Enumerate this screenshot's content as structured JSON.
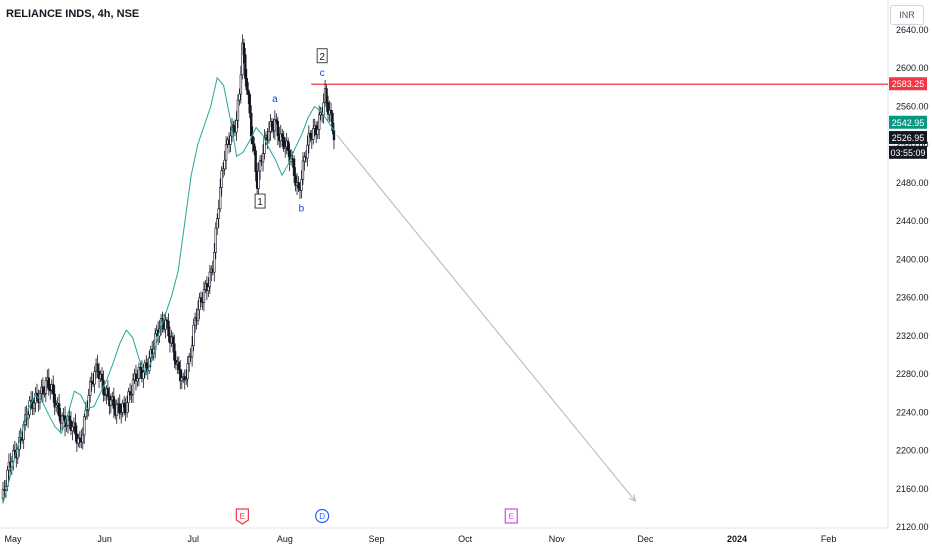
{
  "header": {
    "symbol": "RELIANCE INDS, 4h, NSE",
    "currency": "INR"
  },
  "price_axis": {
    "labels": [
      "2640.00",
      "2600.00",
      "2560.00",
      "2520.00",
      "2480.00",
      "2440.00",
      "2400.00",
      "2360.00",
      "2320.00",
      "2280.00",
      "2240.00",
      "2200.00",
      "2160.00",
      "2120.00"
    ],
    "markers": [
      {
        "label": "2583.25",
        "price": 2583.25,
        "color": "#f23645",
        "text_color": "#ffffff"
      },
      {
        "label": "2542.95",
        "price": 2542.95,
        "color": "#089981",
        "text_color": "#ffffff"
      },
      {
        "label": "2526.95",
        "price": 2526.95,
        "color": "#131722",
        "text_color": "#ffffff"
      },
      {
        "label": "03:55:09",
        "price": 2511.5,
        "color": "#131722",
        "text_color": "#ffffff"
      }
    ]
  },
  "time_axis": {
    "labels": [
      "May",
      "Jun",
      "Jul",
      "Aug",
      "Sep",
      "Oct",
      "Nov",
      "Dec",
      "2024",
      "Feb"
    ],
    "bold": [
      "2024"
    ]
  },
  "events": [
    {
      "label": "E",
      "date": "Jul 21",
      "color": "#f23645",
      "shape": "pentagon"
    },
    {
      "label": "D",
      "date": "Aug 17",
      "color": "#2962ff",
      "shape": "circle"
    },
    {
      "label": "E",
      "date": "Oct 20",
      "color": "#e040fb",
      "shape": "square"
    }
  ],
  "chart_data": {
    "type": "candlestick",
    "symbol": "RELIANCE INDS",
    "interval": "4h",
    "exchange": "NSE",
    "currency": "INR",
    "ylim": [
      2110,
      2650
    ],
    "price_range_visible": [
      2147,
      2636
    ],
    "close_series": [
      {
        "date": "May 01",
        "close": 2150
      },
      {
        "date": "May 04",
        "close": 2192
      },
      {
        "date": "May 07",
        "close": 2215
      },
      {
        "date": "May 10",
        "close": 2242
      },
      {
        "date": "May 13",
        "close": 2262
      },
      {
        "date": "May 16",
        "close": 2268
      },
      {
        "date": "May 19",
        "close": 2248
      },
      {
        "date": "May 22",
        "close": 2232
      },
      {
        "date": "May 25",
        "close": 2218
      },
      {
        "date": "May 27",
        "close": 2210
      },
      {
        "date": "May 30",
        "close": 2258
      },
      {
        "date": "Jun 02",
        "close": 2285
      },
      {
        "date": "Jun 05",
        "close": 2262
      },
      {
        "date": "Jun 08",
        "close": 2238
      },
      {
        "date": "Jun 11",
        "close": 2248
      },
      {
        "date": "Jun 14",
        "close": 2268
      },
      {
        "date": "Jun 17",
        "close": 2282
      },
      {
        "date": "Jun 20",
        "close": 2302
      },
      {
        "date": "Jun 23",
        "close": 2325
      },
      {
        "date": "Jun 25",
        "close": 2338
      },
      {
        "date": "Jun 27",
        "close": 2318
      },
      {
        "date": "Jun 29",
        "close": 2282
      },
      {
        "date": "Jul 01",
        "close": 2268
      },
      {
        "date": "Jul 03",
        "close": 2298
      },
      {
        "date": "Jul 05",
        "close": 2338
      },
      {
        "date": "Jul 07",
        "close": 2352
      },
      {
        "date": "Jul 09",
        "close": 2372
      },
      {
        "date": "Jul 11",
        "close": 2398
      },
      {
        "date": "Jul 13",
        "close": 2458
      },
      {
        "date": "Jul 15",
        "close": 2505
      },
      {
        "date": "Jul 17",
        "close": 2535
      },
      {
        "date": "Jul 19",
        "close": 2548
      },
      {
        "date": "Jul 20",
        "close": 2575
      },
      {
        "date": "Jul 21",
        "close": 2618
      },
      {
        "date": "Jul 22",
        "close": 2590
      },
      {
        "date": "Jul 24",
        "close": 2538
      },
      {
        "date": "Jul 26",
        "close": 2485
      },
      {
        "date": "Jul 28",
        "close": 2512
      },
      {
        "date": "Jul 30",
        "close": 2532
      },
      {
        "date": "Aug 01",
        "close": 2548
      },
      {
        "date": "Aug 03",
        "close": 2528
      },
      {
        "date": "Aug 05",
        "close": 2512
      },
      {
        "date": "Aug 07",
        "close": 2498
      },
      {
        "date": "Aug 09",
        "close": 2475
      },
      {
        "date": "Aug 11",
        "close": 2505
      },
      {
        "date": "Aug 13",
        "close": 2525
      },
      {
        "date": "Aug 15",
        "close": 2538
      },
      {
        "date": "Aug 17",
        "close": 2562
      },
      {
        "date": "Aug 18",
        "close": 2572
      },
      {
        "date": "Aug 19",
        "close": 2555
      },
      {
        "date": "Aug 20",
        "close": 2542
      },
      {
        "date": "Aug 21",
        "close": 2527
      }
    ],
    "moving_average": {
      "color": "#26a69a",
      "values": [
        2145,
        2170,
        2198,
        2222,
        2245,
        2258,
        2252,
        2238,
        2225,
        2218,
        2238,
        2262,
        2258,
        2244,
        2246,
        2260,
        2274,
        2292,
        2312,
        2326,
        2318,
        2295,
        2280,
        2295,
        2322,
        2342,
        2362,
        2388,
        2438,
        2488,
        2520,
        2540,
        2560,
        2590,
        2582,
        2548,
        2508,
        2512,
        2524,
        2538,
        2530,
        2516,
        2504,
        2488,
        2500,
        2516,
        2530,
        2548,
        2560,
        2555,
        2545,
        2535
      ]
    },
    "horizontal_line": {
      "price": 2583.25,
      "color": "#f23645"
    },
    "projection": {
      "from": {
        "date": "Aug 22",
        "price": 2530
      },
      "to": {
        "date": "Dec 01",
        "price": 2147
      },
      "color": "#b2b5be"
    },
    "wave_labels": [
      {
        "text": "1",
        "boxed": true,
        "date": "Jul 27",
        "price": 2460
      },
      {
        "text": "a",
        "boxed": false,
        "date": "Aug 01",
        "price": 2568
      },
      {
        "text": "b",
        "boxed": false,
        "date": "Aug 10",
        "price": 2453
      },
      {
        "text": "2",
        "boxed": true,
        "date": "Aug 17",
        "price": 2612
      },
      {
        "text": "c",
        "boxed": false,
        "date": "Aug 17",
        "price": 2595
      }
    ],
    "price_ticks": [
      2640,
      2600,
      2560,
      2520,
      2480,
      2440,
      2400,
      2360,
      2320,
      2280,
      2240,
      2200,
      2160,
      2120
    ],
    "grid": false
  }
}
